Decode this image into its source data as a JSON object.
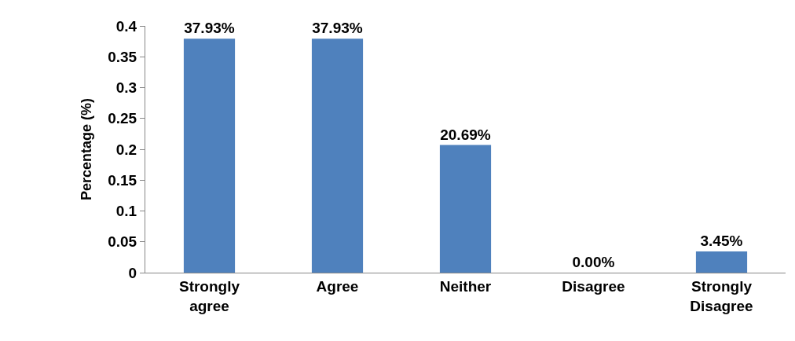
{
  "chart_data": {
    "type": "bar",
    "ylabel": "Percentage (%)",
    "categories": [
      "Strongly agree",
      "Agree",
      "Neither",
      "Disagree",
      "Strongly Disagree"
    ],
    "values": [
      0.3793,
      0.3793,
      0.2069,
      0,
      0.0345
    ],
    "value_labels": [
      "37.93%",
      "37.93%",
      "20.69%",
      "0.00%",
      "3.45%"
    ],
    "color": "#4f81bd",
    "ylim": [
      0,
      0.4
    ],
    "yticks": [
      0,
      0.05,
      0.1,
      0.15,
      0.2,
      0.25,
      0.3,
      0.35,
      0.4
    ],
    "legend": false
  }
}
